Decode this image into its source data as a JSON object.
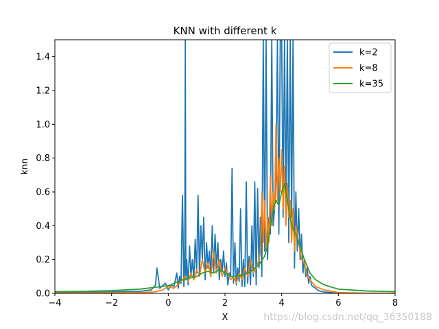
{
  "chart_data": {
    "type": "line",
    "title": "KNN with different k",
    "xlabel": "X",
    "ylabel": "knn",
    "xlim": [
      -4,
      8
    ],
    "ylim": [
      0,
      1.5
    ],
    "xticks": [
      -4,
      -2,
      0,
      2,
      4,
      6,
      8
    ],
    "xtick_labels": [
      "−4",
      "−2",
      "0",
      "2",
      "4",
      "6",
      "8"
    ],
    "yticks": [
      0,
      0.2,
      0.4,
      0.6,
      0.8,
      1.0,
      1.2,
      1.4
    ],
    "ytick_labels": [
      "0.0",
      "0.2",
      "0.4",
      "0.6",
      "0.8",
      "1.0",
      "1.2",
      "1.4"
    ],
    "grid": false,
    "legend_position": "top-right",
    "series": [
      {
        "name": "k=2",
        "color": "#1f77b4",
        "x": [
          -4.0,
          -3.0,
          -2.0,
          -1.0,
          -0.6,
          -0.45,
          -0.4,
          -0.3,
          -0.1,
          0.0,
          0.1,
          0.2,
          0.3,
          0.35,
          0.4,
          0.45,
          0.5,
          0.55,
          0.58,
          0.6,
          0.62,
          0.65,
          0.7,
          0.75,
          0.8,
          0.85,
          0.9,
          0.95,
          1.0,
          1.05,
          1.1,
          1.15,
          1.2,
          1.25,
          1.3,
          1.35,
          1.4,
          1.45,
          1.5,
          1.55,
          1.6,
          1.65,
          1.7,
          1.75,
          1.8,
          1.85,
          1.9,
          1.95,
          2.0,
          2.05,
          2.1,
          2.15,
          2.2,
          2.25,
          2.3,
          2.35,
          2.4,
          2.45,
          2.5,
          2.55,
          2.6,
          2.65,
          2.7,
          2.75,
          2.8,
          2.85,
          2.9,
          2.95,
          3.0,
          3.05,
          3.1,
          3.15,
          3.2,
          3.25,
          3.3,
          3.35,
          3.4,
          3.45,
          3.5,
          3.55,
          3.6,
          3.65,
          3.7,
          3.75,
          3.8,
          3.85,
          3.9,
          3.95,
          4.0,
          4.05,
          4.1,
          4.15,
          4.2,
          4.25,
          4.3,
          4.35,
          4.4,
          4.45,
          4.5,
          4.55,
          4.6,
          4.65,
          4.7,
          4.75,
          4.8,
          4.85,
          4.9,
          4.95,
          5.0,
          5.05,
          5.1,
          5.2,
          5.3,
          5.5,
          5.8,
          6.0,
          6.5,
          7.0,
          8.0
        ],
        "y": [
          0.005,
          0.006,
          0.008,
          0.012,
          0.02,
          0.05,
          0.15,
          0.03,
          0.06,
          0.02,
          0.05,
          0.04,
          0.12,
          0.03,
          0.1,
          0.06,
          0.58,
          0.04,
          0.15,
          1.5,
          0.08,
          0.2,
          0.05,
          0.28,
          0.1,
          0.2,
          0.08,
          0.32,
          0.12,
          0.58,
          0.1,
          0.4,
          0.2,
          0.45,
          0.08,
          0.3,
          0.15,
          0.25,
          0.1,
          0.4,
          0.12,
          0.35,
          0.15,
          0.3,
          0.08,
          0.2,
          0.13,
          0.25,
          0.1,
          0.18,
          0.05,
          0.12,
          0.1,
          0.74,
          0.06,
          0.3,
          0.05,
          0.15,
          0.07,
          0.5,
          0.04,
          0.2,
          0.04,
          0.66,
          0.06,
          0.22,
          0.05,
          0.4,
          0.1,
          0.66,
          0.05,
          0.62,
          0.15,
          0.45,
          0.1,
          1.5,
          0.25,
          1.5,
          0.2,
          0.45,
          0.35,
          1.5,
          0.4,
          0.5,
          0.7,
          1.5,
          0.35,
          1.5,
          1.5,
          0.45,
          1.5,
          0.5,
          1.5,
          0.3,
          1.5,
          0.45,
          1.5,
          0.15,
          0.6,
          0.25,
          0.5,
          0.2,
          0.35,
          0.12,
          0.2,
          0.1,
          0.15,
          0.06,
          0.1,
          0.05,
          0.04,
          0.03,
          0.015,
          0.008,
          0.004,
          0.003,
          0.002,
          0.001,
          0.001
        ]
      },
      {
        "name": "k=8",
        "color": "#ff7f0e",
        "x": [
          -4.0,
          -2.0,
          -1.0,
          -0.5,
          -0.2,
          0.0,
          0.2,
          0.4,
          0.5,
          0.6,
          0.7,
          0.8,
          0.9,
          1.0,
          1.1,
          1.2,
          1.3,
          1.4,
          1.5,
          1.6,
          1.7,
          1.8,
          1.9,
          2.0,
          2.1,
          2.2,
          2.3,
          2.4,
          2.5,
          2.6,
          2.7,
          2.8,
          2.9,
          3.0,
          3.1,
          3.2,
          3.25,
          3.3,
          3.35,
          3.4,
          3.45,
          3.5,
          3.55,
          3.6,
          3.65,
          3.7,
          3.75,
          3.8,
          3.85,
          3.9,
          3.95,
          4.0,
          4.05,
          4.1,
          4.15,
          4.2,
          4.25,
          4.3,
          4.35,
          4.4,
          4.45,
          4.5,
          4.6,
          4.7,
          4.8,
          4.9,
          5.0,
          5.2,
          5.5,
          6.0,
          7.0,
          8.0
        ],
        "y": [
          0.002,
          0.003,
          0.005,
          0.008,
          0.02,
          0.04,
          0.03,
          0.06,
          0.08,
          0.1,
          0.07,
          0.12,
          0.08,
          0.14,
          0.1,
          0.2,
          0.12,
          0.18,
          0.1,
          0.25,
          0.12,
          0.2,
          0.1,
          0.15,
          0.12,
          0.08,
          0.1,
          0.06,
          0.12,
          0.08,
          0.15,
          0.1,
          0.2,
          0.12,
          0.15,
          0.2,
          0.25,
          0.6,
          0.3,
          0.55,
          0.25,
          0.45,
          0.3,
          0.7,
          0.4,
          0.6,
          0.5,
          1.0,
          0.55,
          0.8,
          0.6,
          0.85,
          0.5,
          0.75,
          0.4,
          0.65,
          0.45,
          0.55,
          0.3,
          0.5,
          0.25,
          0.4,
          0.3,
          0.2,
          0.18,
          0.1,
          0.08,
          0.04,
          0.02,
          0.005,
          0.001,
          0.001
        ]
      },
      {
        "name": "k=35",
        "color": "#2ca02c",
        "x": [
          -4.0,
          -3.0,
          -2.0,
          -1.0,
          -0.5,
          0.0,
          0.5,
          1.0,
          1.2,
          1.4,
          1.6,
          1.8,
          2.0,
          2.2,
          2.4,
          2.6,
          2.8,
          3.0,
          3.2,
          3.4,
          3.5,
          3.6,
          3.7,
          3.8,
          3.9,
          4.0,
          4.1,
          4.2,
          4.3,
          4.4,
          4.5,
          4.6,
          4.7,
          4.8,
          5.0,
          5.2,
          5.5,
          6.0,
          7.0,
          8.0
        ],
        "y": [
          0.01,
          0.012,
          0.016,
          0.025,
          0.035,
          0.045,
          0.08,
          0.1,
          0.12,
          0.13,
          0.12,
          0.14,
          0.12,
          0.1,
          0.1,
          0.11,
          0.12,
          0.14,
          0.17,
          0.22,
          0.28,
          0.4,
          0.5,
          0.55,
          0.52,
          0.6,
          0.65,
          0.55,
          0.45,
          0.38,
          0.35,
          0.3,
          0.25,
          0.2,
          0.12,
          0.08,
          0.05,
          0.025,
          0.014,
          0.01
        ]
      }
    ]
  },
  "watermark": "https://blog.csdn.net/qq_36350188"
}
